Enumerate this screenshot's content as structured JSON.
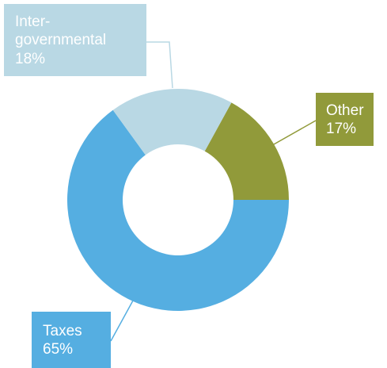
{
  "chart_data": {
    "type": "pie",
    "donut": true,
    "title": "",
    "slices": [
      {
        "label": "Other",
        "percent_label": "17%",
        "value": 17,
        "color": "#919a3a"
      },
      {
        "label": "Taxes",
        "percent_label": "65%",
        "value": 65,
        "color": "#55aee1"
      },
      {
        "label": "Inter-governmental",
        "label_lines": [
          "Inter-",
          "governmental"
        ],
        "percent_label": "18%",
        "value": 18,
        "color": "#b9d8e4"
      }
    ]
  }
}
